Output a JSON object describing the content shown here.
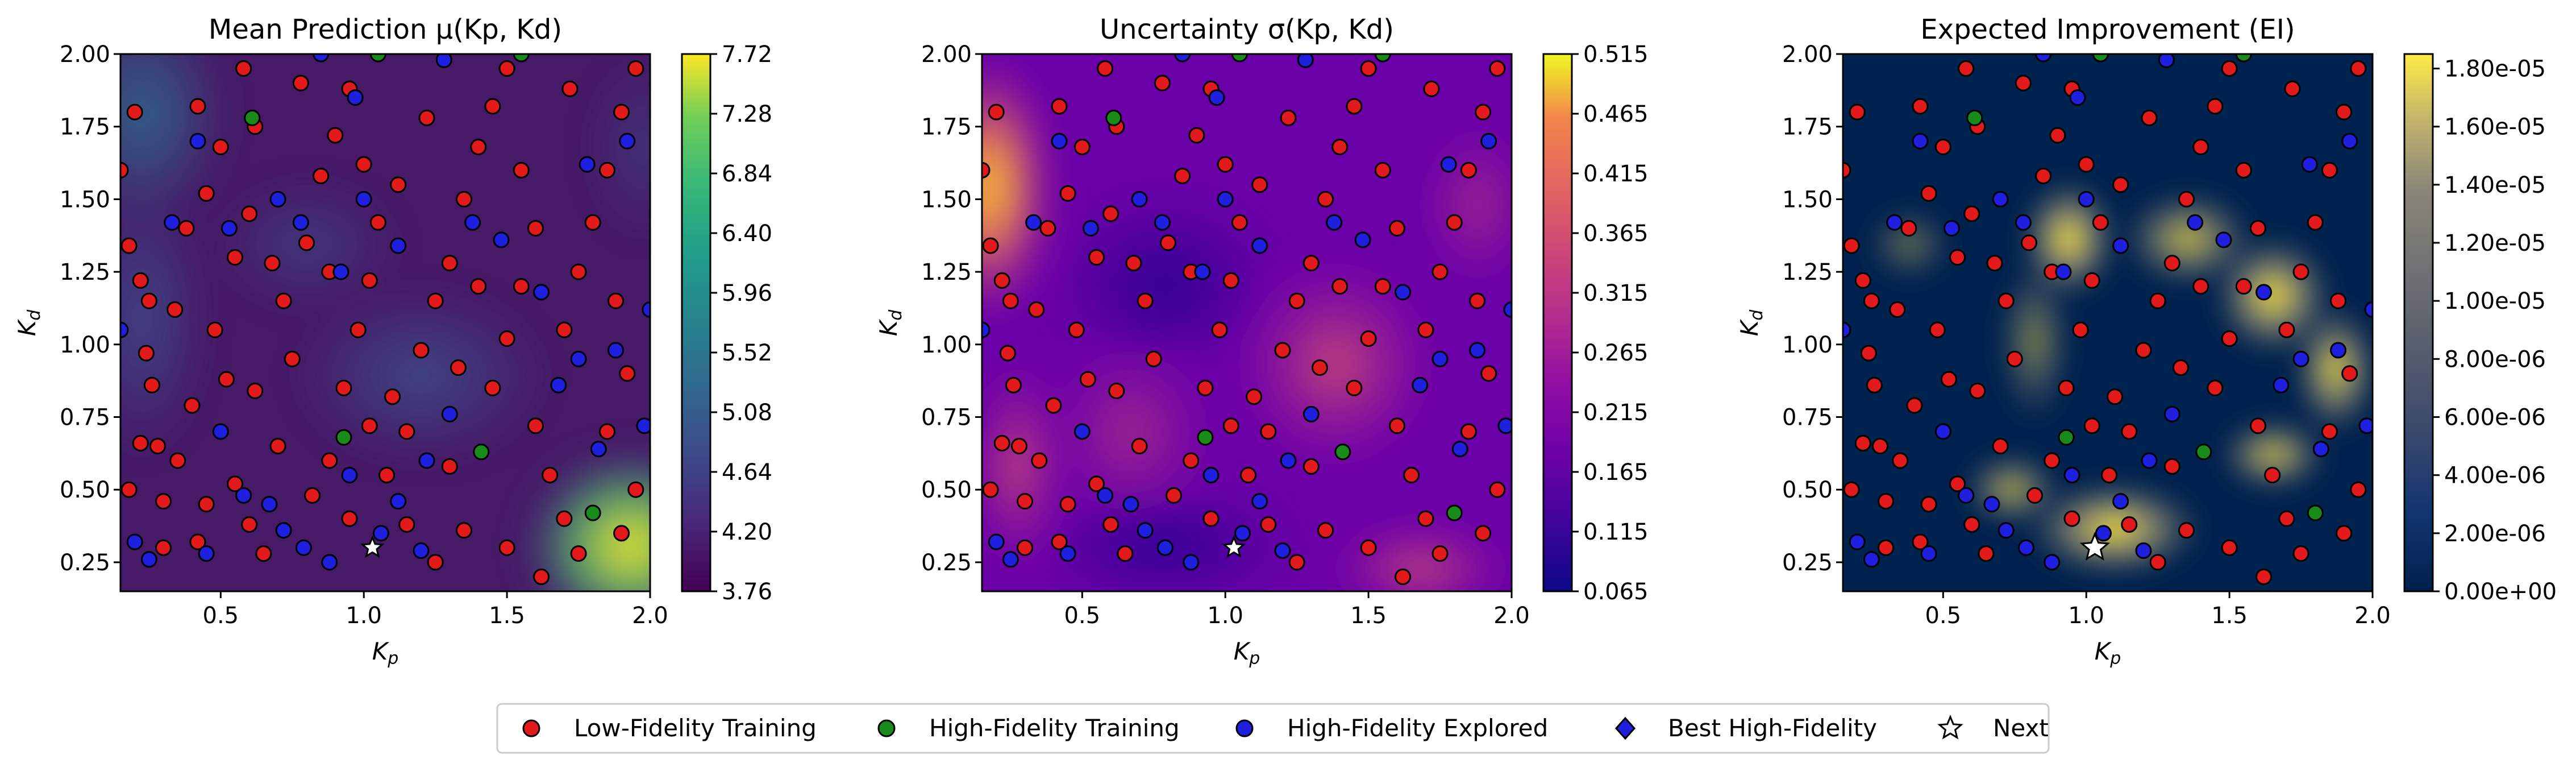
{
  "figure": {
    "background": "#ffffff"
  },
  "chart_data": [
    {
      "type": "heatmap",
      "title": "Mean Prediction μ(Kp, Kd)",
      "xlabel": "Kp",
      "ylabel": "Kd",
      "xlim": [
        0.15,
        2.0
      ],
      "ylim": [
        0.15,
        2.0
      ],
      "xticks": [
        "0.5",
        "1.0",
        "1.5",
        "2.0"
      ],
      "yticks": [
        "0.25",
        "0.50",
        "0.75",
        "1.00",
        "1.25",
        "1.50",
        "1.75",
        "2.00"
      ],
      "colormap": "viridis",
      "colorbar_range": [
        3.76,
        7.72
      ],
      "colorbar_ticks": [
        "3.76",
        "4.20",
        "4.64",
        "5.08",
        "5.52",
        "5.96",
        "6.40",
        "6.84",
        "7.28",
        "7.72"
      ]
    },
    {
      "type": "heatmap",
      "title": "Uncertainty σ(Kp, Kd)",
      "xlabel": "Kp",
      "ylabel": "Kd",
      "xlim": [
        0.15,
        2.0
      ],
      "ylim": [
        0.15,
        2.0
      ],
      "xticks": [
        "0.5",
        "1.0",
        "1.5",
        "2.0"
      ],
      "yticks": [
        "0.25",
        "0.50",
        "0.75",
        "1.00",
        "1.25",
        "1.50",
        "1.75",
        "2.00"
      ],
      "colormap": "plasma",
      "colorbar_range": [
        0.065,
        0.515
      ],
      "colorbar_ticks": [
        "0.065",
        "0.115",
        "0.165",
        "0.215",
        "0.265",
        "0.315",
        "0.365",
        "0.415",
        "0.465",
        "0.515"
      ]
    },
    {
      "type": "heatmap",
      "title": "Expected Improvement (EI)",
      "xlabel": "Kp",
      "ylabel": "Kd",
      "xlim": [
        0.15,
        2.0
      ],
      "ylim": [
        0.15,
        2.0
      ],
      "xticks": [
        "0.5",
        "1.0",
        "1.5",
        "2.0"
      ],
      "yticks": [
        "0.25",
        "0.50",
        "0.75",
        "1.00",
        "1.25",
        "1.50",
        "1.75",
        "2.00"
      ],
      "colormap": "cividis",
      "colorbar_range": [
        0.0,
        1.85e-05
      ],
      "colorbar_ticks": [
        "0.00e+00",
        "2.00e-06",
        "4.00e-06",
        "6.00e-06",
        "8.00e-06",
        "1.00e-05",
        "1.20e-05",
        "1.40e-05",
        "1.60e-05",
        "1.80e-05"
      ]
    }
  ],
  "points": {
    "low_fidelity": [
      [
        0.15,
        1.6
      ],
      [
        0.18,
        1.34
      ],
      [
        0.2,
        1.8
      ],
      [
        0.22,
        1.22
      ],
      [
        0.24,
        0.97
      ],
      [
        0.26,
        0.86
      ],
      [
        0.22,
        0.66
      ],
      [
        0.28,
        0.65
      ],
      [
        0.18,
        0.5
      ],
      [
        0.34,
        1.12
      ],
      [
        0.38,
        1.4
      ],
      [
        0.42,
        1.82
      ],
      [
        0.45,
        1.52
      ],
      [
        0.5,
        1.68
      ],
      [
        0.55,
        1.3
      ],
      [
        0.58,
        1.95
      ],
      [
        0.62,
        1.75
      ],
      [
        0.6,
        1.45
      ],
      [
        0.48,
        1.05
      ],
      [
        0.52,
        0.88
      ],
      [
        0.4,
        0.79
      ],
      [
        0.35,
        0.6
      ],
      [
        0.3,
        0.46
      ],
      [
        0.42,
        0.32
      ],
      [
        0.55,
        0.52
      ],
      [
        0.6,
        0.38
      ],
      [
        0.65,
        0.28
      ],
      [
        0.7,
        0.65
      ],
      [
        0.62,
        0.84
      ],
      [
        0.75,
        0.95
      ],
      [
        0.8,
        1.35
      ],
      [
        0.85,
        1.58
      ],
      [
        0.9,
        1.72
      ],
      [
        0.95,
        1.88
      ],
      [
        1.0,
        1.62
      ],
      [
        1.05,
        1.42
      ],
      [
        1.02,
        1.22
      ],
      [
        0.98,
        1.05
      ],
      [
        0.93,
        0.85
      ],
      [
        0.88,
        0.6
      ],
      [
        0.82,
        0.48
      ],
      [
        0.95,
        0.4
      ],
      [
        1.08,
        0.55
      ],
      [
        1.15,
        0.7
      ],
      [
        1.1,
        0.82
      ],
      [
        1.2,
        0.98
      ],
      [
        1.25,
        1.15
      ],
      [
        1.3,
        1.28
      ],
      [
        1.35,
        1.5
      ],
      [
        1.4,
        1.68
      ],
      [
        1.45,
        1.82
      ],
      [
        1.5,
        1.95
      ],
      [
        1.55,
        1.6
      ],
      [
        1.6,
        1.4
      ],
      [
        1.55,
        1.2
      ],
      [
        1.5,
        1.02
      ],
      [
        1.45,
        0.85
      ],
      [
        1.6,
        0.72
      ],
      [
        1.65,
        0.55
      ],
      [
        1.7,
        0.4
      ],
      [
        1.75,
        0.28
      ],
      [
        1.62,
        0.2
      ],
      [
        1.5,
        0.3
      ],
      [
        1.35,
        0.36
      ],
      [
        1.25,
        0.25
      ],
      [
        1.15,
        0.38
      ],
      [
        1.7,
        1.05
      ],
      [
        1.75,
        1.25
      ],
      [
        1.8,
        1.42
      ],
      [
        1.85,
        1.6
      ],
      [
        1.9,
        1.8
      ],
      [
        1.95,
        1.95
      ],
      [
        1.88,
        1.15
      ],
      [
        1.92,
        0.9
      ],
      [
        1.85,
        0.7
      ],
      [
        1.95,
        0.5
      ],
      [
        1.9,
        0.35
      ],
      [
        1.3,
        0.58
      ],
      [
        0.72,
        1.15
      ],
      [
        0.68,
        1.28
      ],
      [
        1.12,
        1.55
      ],
      [
        1.22,
        1.78
      ],
      [
        0.78,
        1.9
      ],
      [
        0.45,
        0.45
      ],
      [
        0.3,
        0.3
      ],
      [
        1.4,
        1.2
      ],
      [
        1.02,
        0.72
      ],
      [
        0.88,
        1.25
      ],
      [
        1.33,
        0.92
      ],
      [
        1.72,
        1.88
      ],
      [
        0.25,
        1.15
      ]
    ],
    "high_fidelity_training": [
      [
        0.61,
        1.78
      ],
      [
        0.93,
        0.68
      ],
      [
        1.41,
        0.63
      ],
      [
        1.8,
        0.42
      ],
      [
        1.05,
        2.0
      ],
      [
        1.55,
        2.0
      ]
    ],
    "high_fidelity_explored": [
      [
        0.15,
        1.05
      ],
      [
        0.33,
        1.42
      ],
      [
        0.5,
        0.7
      ],
      [
        0.58,
        0.48
      ],
      [
        0.67,
        0.45
      ],
      [
        0.72,
        0.36
      ],
      [
        0.79,
        0.3
      ],
      [
        0.88,
        0.25
      ],
      [
        0.95,
        0.55
      ],
      [
        1.06,
        0.35
      ],
      [
        1.12,
        0.46
      ],
      [
        1.2,
        0.29
      ],
      [
        0.2,
        0.32
      ],
      [
        0.25,
        0.26
      ],
      [
        0.45,
        0.28
      ],
      [
        0.7,
        1.5
      ],
      [
        0.78,
        1.42
      ],
      [
        0.92,
        1.25
      ],
      [
        1.0,
        1.5
      ],
      [
        1.12,
        1.34
      ],
      [
        1.38,
        1.42
      ],
      [
        1.48,
        1.36
      ],
      [
        1.78,
        1.62
      ],
      [
        1.92,
        1.7
      ],
      [
        2.0,
        1.12
      ],
      [
        1.88,
        0.98
      ],
      [
        1.98,
        0.72
      ],
      [
        1.82,
        0.64
      ],
      [
        1.68,
        0.86
      ],
      [
        1.3,
        0.76
      ],
      [
        1.22,
        0.6
      ],
      [
        1.62,
        1.18
      ],
      [
        0.53,
        1.4
      ],
      [
        0.42,
        1.7
      ],
      [
        0.97,
        1.85
      ],
      [
        1.28,
        1.98
      ],
      [
        0.85,
        2.0
      ],
      [
        1.75,
        0.95
      ]
    ],
    "best_high_fidelity": [],
    "next": [
      [
        1.03,
        0.3
      ]
    ]
  },
  "legend": [
    {
      "label": "Low-Fidelity Training",
      "marker": "circle",
      "color": "#e31a1c"
    },
    {
      "label": "High-Fidelity Training",
      "marker": "circle",
      "color": "#1a8a1a"
    },
    {
      "label": "High-Fidelity Explored",
      "marker": "circle",
      "color": "#1f1fe0"
    },
    {
      "label": "Best High-Fidelity",
      "marker": "diamond",
      "color": "#1f1fe0"
    },
    {
      "label": "Next",
      "marker": "star",
      "color": "#ffffff"
    }
  ],
  "colors": {
    "low": "#e31a1c",
    "high_train": "#1a8a1a",
    "high_explored": "#1f1fe0",
    "marker_edge": "#000000"
  }
}
